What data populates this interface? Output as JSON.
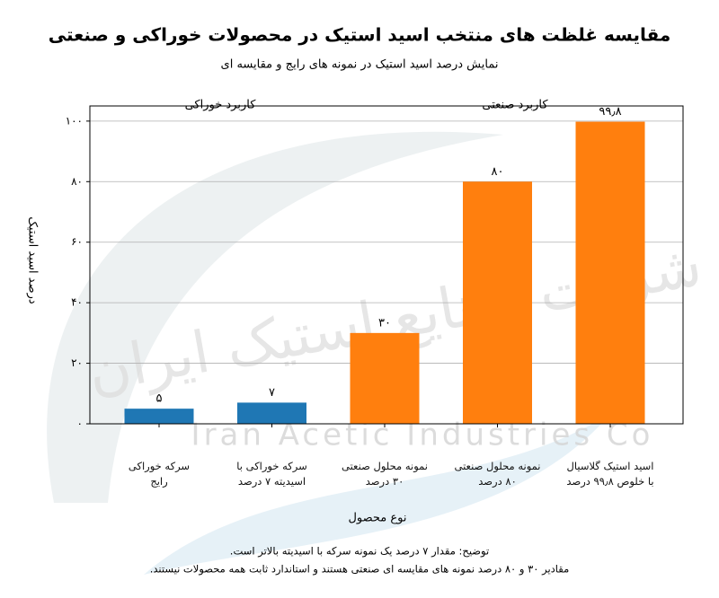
{
  "chart_data": {
    "type": "bar",
    "title": "مقایسه غلظت های منتخب اسید استیک در محصولات خوراکی و صنعتی",
    "subtitle": "نمایش درصد اسید استیک در نمونه های رایج و مقایسه ای",
    "x_label": "نوع محصول",
    "y_label": "درصد اسید استیک",
    "categories": [
      "سرکه خوراکی\nرایج",
      "سرکه خوراکی با\nاسیدیته ۷ درصد",
      "نمونه محلول صنعتی\n۳۰ درصد",
      "نمونه محلول صنعتی\n۸۰ درصد",
      "اسید استیک گلاسیال\nبا خلوص ۹۹٫۸ درصد"
    ],
    "values": [
      5,
      7,
      30,
      80,
      99.8
    ],
    "value_labels": [
      "۵",
      "۷",
      "۳۰",
      "۸۰",
      "۹۹٫۸"
    ],
    "colors": [
      "#1f77b4",
      "#1f77b4",
      "#ff7f0e",
      "#ff7f0e",
      "#ff7f0e"
    ],
    "groups": [
      "کاربرد خوراکی",
      "کاربرد صنعتی"
    ],
    "ylim": [
      0,
      105
    ],
    "yticks": [
      {
        "value": 0,
        "label": "۰"
      },
      {
        "value": 20,
        "label": "۲۰"
      },
      {
        "value": 40,
        "label": "۴۰"
      },
      {
        "value": 60,
        "label": "۶۰"
      },
      {
        "value": 80,
        "label": "۸۰"
      },
      {
        "value": 100,
        "label": "۱۰۰"
      }
    ],
    "grid": true,
    "notes": [
      "توضیح: مقدار ۷ درصد یک نمونه سرکه با اسیدیته بالاتر است.",
      "مقادیر ۳۰ و ۸۰ درصد نمونه های مقایسه ای صنعتی هستند و استاندارد ثابت همه محصولات نیستند."
    ],
    "watermark": [
      "شرکت صنایع استیک ایران",
      "Iran Acetic Industries Co"
    ]
  }
}
